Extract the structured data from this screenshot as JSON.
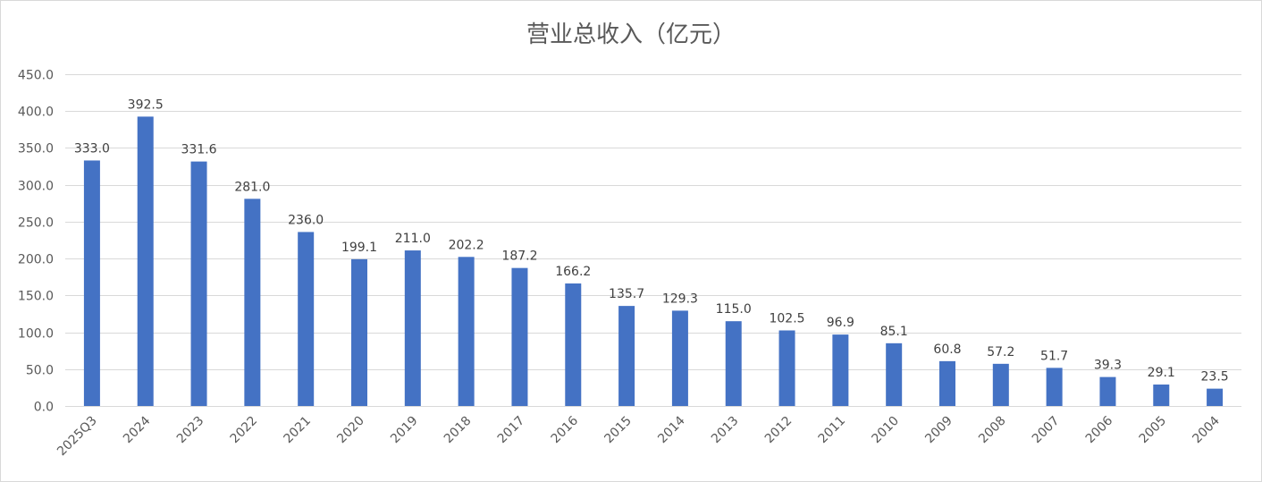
{
  "chart_data": {
    "type": "bar",
    "title": "营业总收入（亿元）",
    "xlabel": "",
    "ylabel": "",
    "categories": [
      "2025Q3",
      "2024",
      "2023",
      "2022",
      "2021",
      "2020",
      "2019",
      "2018",
      "2017",
      "2016",
      "2015",
      "2014",
      "2013",
      "2012",
      "2011",
      "2010",
      "2009",
      "2008",
      "2007",
      "2006",
      "2005",
      "2004"
    ],
    "values": [
      333.0,
      392.5,
      331.6,
      281.0,
      236.0,
      199.1,
      211.0,
      202.2,
      187.2,
      166.2,
      135.7,
      129.3,
      115.0,
      102.5,
      96.9,
      85.1,
      60.8,
      57.2,
      51.7,
      39.3,
      29.1,
      23.5
    ],
    "value_labels": [
      "333.0",
      "392.5",
      "331.6",
      "281.0",
      "236.0",
      "199.1",
      "211.0",
      "202.2",
      "187.2",
      "166.2",
      "135.7",
      "129.3",
      "115.0",
      "102.5",
      "96.9",
      "85.1",
      "60.8",
      "57.2",
      "51.7",
      "39.3",
      "29.1",
      "23.5"
    ],
    "ylim": [
      0,
      450
    ],
    "y_ticks": [
      "0.0",
      "50.0",
      "100.0",
      "150.0",
      "200.0",
      "250.0",
      "300.0",
      "350.0",
      "400.0",
      "450.0"
    ],
    "grid": true,
    "legend": "none",
    "bar_color": "#4472C4"
  }
}
